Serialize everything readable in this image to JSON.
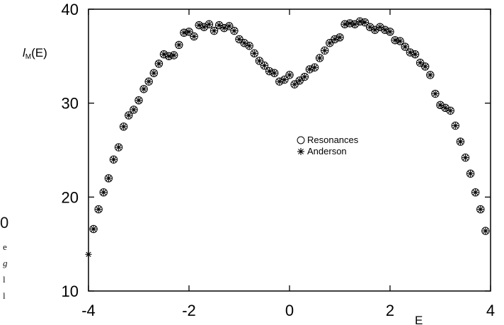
{
  "chart_data": {
    "type": "scatter",
    "title": "",
    "xlabel": "E",
    "ylabel_main": "l",
    "ylabel_sub": "M",
    "ylabel_tail": "(E)",
    "xlim": [
      -4,
      4
    ],
    "ylim": [
      10,
      40
    ],
    "xticks": [
      "-4",
      "-2",
      "0",
      "2",
      "4"
    ],
    "yticks": [
      "10",
      "20",
      "30",
      "40"
    ],
    "legend": [
      "Resonances",
      "Anderson"
    ],
    "legend_position": "center-right",
    "grid": false,
    "series": [
      {
        "name": "Resonances",
        "marker": "open-circle",
        "x": [
          -3.9,
          -3.8,
          -3.7,
          -3.6,
          -3.5,
          -3.4,
          -3.3,
          -3.2,
          -3.1,
          -3.0,
          -2.9,
          -2.8,
          -2.7,
          -2.6,
          -2.5,
          -2.4,
          -2.3,
          -2.2,
          -2.1,
          -2.0,
          -1.9,
          -1.8,
          -1.7,
          -1.6,
          -1.5,
          -1.4,
          -1.3,
          -1.2,
          -1.1,
          -1.0,
          -0.9,
          -0.8,
          -0.7,
          -0.6,
          -0.5,
          -0.4,
          -0.3,
          -0.2,
          -0.1,
          0.0,
          0.1,
          0.2,
          0.3,
          0.4,
          0.5,
          0.6,
          0.7,
          0.8,
          0.9,
          1.0,
          1.1,
          1.2,
          1.3,
          1.4,
          1.5,
          1.6,
          1.7,
          1.8,
          1.9,
          2.0,
          2.1,
          2.2,
          2.3,
          2.4,
          2.5,
          2.6,
          2.7,
          2.8,
          2.9,
          3.0,
          3.1,
          3.2,
          3.3,
          3.4,
          3.5,
          3.6,
          3.7,
          3.8,
          3.9
        ],
        "y": [
          16.6,
          18.7,
          20.5,
          22.0,
          24.0,
          25.3,
          27.5,
          28.7,
          29.3,
          30.3,
          31.5,
          32.3,
          33.2,
          34.2,
          35.2,
          35.0,
          35.1,
          36.2,
          37.5,
          37.6,
          37.1,
          38.3,
          38.1,
          38.4,
          37.7,
          38.3,
          38.0,
          38.2,
          37.7,
          36.8,
          36.4,
          36.1,
          35.3,
          34.5,
          34.0,
          33.4,
          33.2,
          32.3,
          32.5,
          33.0,
          32.0,
          32.4,
          32.8,
          33.6,
          33.8,
          34.8,
          35.6,
          36.4,
          36.8,
          37.0,
          38.4,
          38.5,
          38.4,
          38.7,
          38.6,
          38.1,
          37.8,
          38.1,
          37.8,
          37.6,
          36.7,
          36.6,
          36.0,
          35.4,
          35.2,
          34.3,
          33.9,
          33.0,
          31.0,
          29.8,
          29.5,
          29.2,
          27.6,
          25.9,
          24.2,
          22.5,
          20.5,
          18.7,
          16.4
        ]
      },
      {
        "name": "Anderson",
        "marker": "asterisk",
        "x": [
          -4.0,
          -3.9,
          -3.8,
          -3.7,
          -3.6,
          -3.5,
          -3.4,
          -3.3,
          -3.2,
          -3.1,
          -3.0,
          -2.9,
          -2.8,
          -2.7,
          -2.6,
          -2.5,
          -2.4,
          -2.3,
          -2.2,
          -2.1,
          -2.0,
          -1.9,
          -1.8,
          -1.7,
          -1.6,
          -1.5,
          -1.4,
          -1.3,
          -1.2,
          -1.1,
          -1.0,
          -0.9,
          -0.8,
          -0.7,
          -0.6,
          -0.5,
          -0.4,
          -0.3,
          -0.2,
          -0.1,
          0.0,
          0.1,
          0.2,
          0.3,
          0.4,
          0.5,
          0.6,
          0.7,
          0.8,
          0.9,
          1.0,
          1.1,
          1.2,
          1.3,
          1.4,
          1.5,
          1.6,
          1.7,
          1.8,
          1.9,
          2.0,
          2.1,
          2.2,
          2.3,
          2.4,
          2.5,
          2.6,
          2.7,
          2.8,
          2.9,
          3.0,
          3.1,
          3.2,
          3.3,
          3.4,
          3.5,
          3.6,
          3.7,
          3.8,
          3.9
        ],
        "y": [
          13.9,
          16.6,
          18.7,
          20.5,
          22.0,
          24.0,
          25.3,
          27.5,
          28.7,
          29.3,
          30.3,
          31.5,
          32.3,
          33.2,
          34.2,
          35.2,
          35.0,
          35.1,
          36.2,
          37.5,
          37.6,
          37.1,
          38.3,
          38.1,
          38.4,
          37.7,
          38.3,
          38.0,
          38.2,
          37.7,
          36.8,
          36.4,
          36.1,
          35.3,
          34.5,
          34.0,
          33.4,
          33.2,
          32.3,
          32.5,
          33.0,
          32.0,
          32.4,
          32.8,
          33.6,
          33.8,
          34.8,
          35.6,
          36.4,
          36.8,
          37.0,
          38.4,
          38.5,
          38.4,
          38.7,
          38.6,
          38.1,
          37.8,
          38.1,
          37.8,
          37.6,
          36.7,
          36.6,
          36.0,
          35.4,
          35.2,
          34.3,
          33.9,
          33.0,
          31.0,
          29.8,
          29.5,
          29.2,
          27.6,
          25.9,
          24.2,
          22.5,
          20.5,
          18.7,
          16.4
        ]
      }
    ]
  },
  "margin_fragments": [
    "0",
    "e",
    "g",
    "l",
    "l"
  ]
}
